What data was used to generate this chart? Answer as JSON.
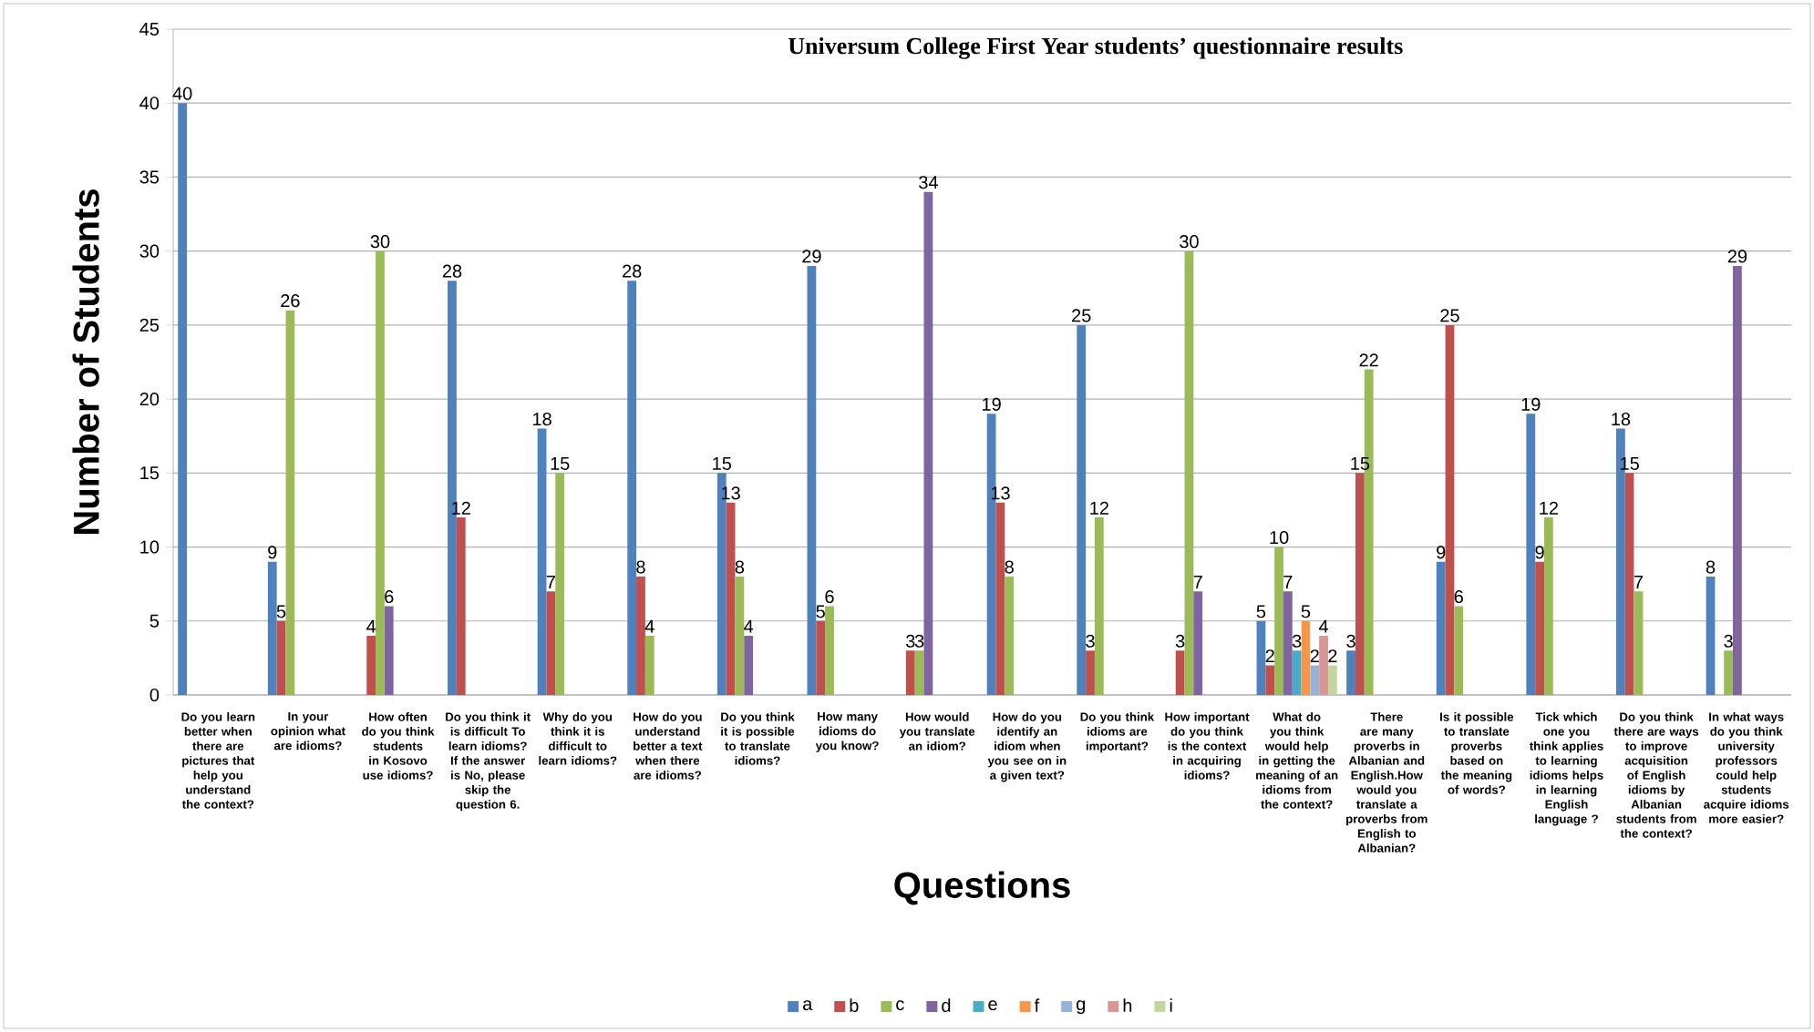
{
  "chart_data": {
    "type": "bar",
    "title": "Universum College  First Year students’ questionnaire results",
    "xlabel": "Questions",
    "ylabel": "Number of Students",
    "categories": [
      "Do you learn better when there are pictures that help you understand the context?",
      "In your opinion what are idioms?",
      "How often do you think students in Kosovo use idioms?",
      "Do you think it is difficult To learn idioms? If the answer is No, please skip the question 6.",
      "Why do you think it is difficult to learn idioms?",
      "How do you understand better a text when there are idioms?",
      "Do you think it is possible to translate idioms?",
      "How many idioms do you know?",
      "How would you translate an idiom?",
      "How do you identify an idiom when you see on in a given text?",
      "Do you think idioms are important?",
      "How important do you think is the context in acquiring idioms?",
      "What do you think would help in getting the meaning of an idioms from the context?",
      "There are many proverbs in Albanian and English.How would you translate a proverbs from English to Albanian?",
      "Is it possible to translate proverbs based on the meaning of words?",
      "Tick which one you think applies to learning idioms helps in learning English language ?",
      "Do you think there are ways to improve acquisition of English idioms by Albanian students from the context?",
      "In what ways do you think university professors could help students acquire idioms more easier?"
    ],
    "series": [
      {
        "name": "a",
        "color": "#4f81bd",
        "values": [
          40,
          9,
          null,
          28,
          18,
          28,
          15,
          29,
          null,
          19,
          25,
          null,
          5,
          3,
          9,
          19,
          18,
          8
        ]
      },
      {
        "name": "b",
        "color": "#c0504d",
        "values": [
          null,
          5,
          4,
          12,
          7,
          8,
          13,
          5,
          3,
          13,
          3,
          3,
          2,
          15,
          25,
          9,
          15,
          null
        ]
      },
      {
        "name": "c",
        "color": "#9bbb59",
        "values": [
          null,
          26,
          30,
          null,
          15,
          4,
          8,
          6,
          3,
          8,
          12,
          30,
          10,
          22,
          6,
          12,
          7,
          3
        ]
      },
      {
        "name": "d",
        "color": "#8064a2",
        "values": [
          null,
          null,
          6,
          null,
          null,
          null,
          4,
          null,
          34,
          null,
          null,
          7,
          7,
          null,
          null,
          null,
          null,
          29
        ]
      },
      {
        "name": "e",
        "color": "#4bacc6",
        "values": [
          null,
          null,
          null,
          null,
          null,
          null,
          null,
          null,
          null,
          null,
          null,
          null,
          3,
          null,
          null,
          null,
          null,
          null
        ]
      },
      {
        "name": "f",
        "color": "#f79646",
        "values": [
          null,
          null,
          null,
          null,
          null,
          null,
          null,
          null,
          null,
          null,
          null,
          null,
          5,
          null,
          null,
          null,
          null,
          null
        ]
      },
      {
        "name": "g",
        "color": "#95b3d7",
        "values": [
          null,
          null,
          null,
          null,
          null,
          null,
          null,
          null,
          null,
          null,
          null,
          null,
          2,
          null,
          null,
          null,
          null,
          null
        ]
      },
      {
        "name": "h",
        "color": "#d99694",
        "values": [
          null,
          null,
          null,
          null,
          null,
          null,
          null,
          null,
          null,
          null,
          null,
          null,
          4,
          null,
          null,
          null,
          null,
          null
        ]
      },
      {
        "name": "i",
        "color": "#c3d69b",
        "values": [
          null,
          null,
          null,
          null,
          null,
          null,
          null,
          null,
          null,
          null,
          null,
          null,
          2,
          null,
          null,
          null,
          null,
          null
        ]
      }
    ],
    "ylim": [
      0,
      45
    ],
    "yticks": [
      0,
      5,
      10,
      15,
      20,
      25,
      30,
      35,
      40,
      45
    ],
    "grid": "y",
    "legend": "bottom",
    "data_labels": true
  }
}
